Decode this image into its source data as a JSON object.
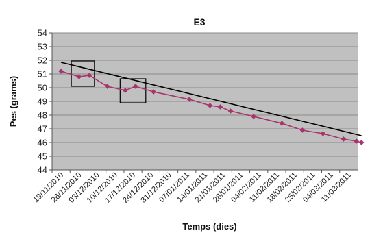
{
  "chart_data": {
    "type": "line",
    "title": "E3",
    "xlabel": "Temps (dies)",
    "ylabel": "Pes (grams)",
    "ylim": [
      44,
      54
    ],
    "yticks": [
      44,
      45,
      46,
      47,
      48,
      49,
      50,
      51,
      52,
      53,
      54
    ],
    "categories": [
      "19/11/2010",
      "26/11/2010",
      "03/12/2010",
      "10/12/2010",
      "17/12/2010",
      "24/12/2010",
      "31/12/2010",
      "07/01/2011",
      "14/01/2011",
      "21/01/2011",
      "28/01/2011",
      "04/02/2011",
      "11/02/2011",
      "18/02/2011",
      "25/02/2011",
      "04/03/2011",
      "11/03/2011"
    ],
    "xlim": [
      "2010-11-19",
      "2011-03-19"
    ],
    "grid": true,
    "series": [
      {
        "marker": "diamond",
        "color": "#a8336d",
        "points": [
          {
            "x": "2010-11-19",
            "y": 51.2
          },
          {
            "x": "2010-11-26",
            "y": 50.8
          },
          {
            "x": "2010-11-30",
            "y": 50.9
          },
          {
            "x": "2010-12-07",
            "y": 50.1
          },
          {
            "x": "2010-12-14",
            "y": 49.8
          },
          {
            "x": "2010-12-18",
            "y": 50.1
          },
          {
            "x": "2010-12-25",
            "y": 49.7
          },
          {
            "x": "2011-01-08",
            "y": 49.15
          },
          {
            "x": "2011-01-16",
            "y": 48.7
          },
          {
            "x": "2011-01-20",
            "y": 48.6
          },
          {
            "x": "2011-01-24",
            "y": 48.3
          },
          {
            "x": "2011-02-02",
            "y": 47.9
          },
          {
            "x": "2011-02-13",
            "y": 47.4
          },
          {
            "x": "2011-02-21",
            "y": 46.9
          },
          {
            "x": "2011-03-01",
            "y": 46.65
          },
          {
            "x": "2011-03-09",
            "y": 46.25
          },
          {
            "x": "2011-03-14",
            "y": 46.1
          },
          {
            "x": "2011-03-16",
            "y": 46.0
          }
        ]
      },
      {
        "style": "trendline",
        "color": "#000000",
        "points": [
          {
            "x": "2010-11-19",
            "y": 51.85
          },
          {
            "x": "2011-03-16",
            "y": 46.5
          }
        ]
      }
    ],
    "highlight_boxes": [
      {
        "x_from": "2010-11-23",
        "x_to": "2010-12-02",
        "y_from": 50.1,
        "y_to": 51.95
      },
      {
        "x_from": "2010-12-12",
        "x_to": "2010-12-22",
        "y_from": 48.9,
        "y_to": 50.65
      }
    ],
    "colors": {
      "plot_background": "#c0c0c0",
      "gridline": "#8a8a8a",
      "marker": "#a8336d",
      "trendline": "#000000"
    }
  }
}
